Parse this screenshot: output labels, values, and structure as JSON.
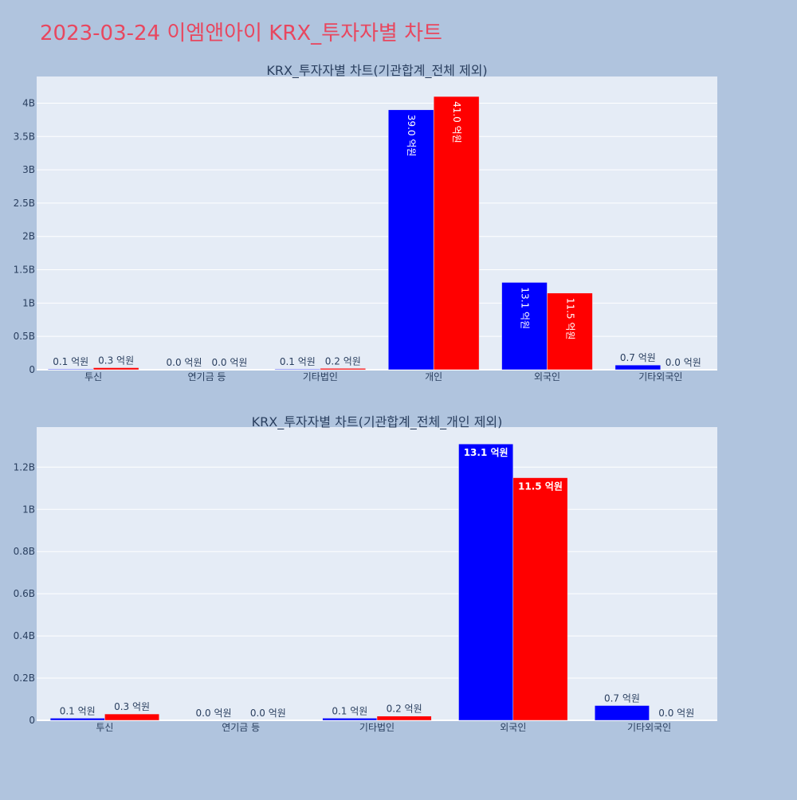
{
  "page_title": "2023-03-24 이엠앤아이 KRX_투자자별 차트",
  "colors": {
    "background": "#b0c4de",
    "plot_background": "#e5ecf6",
    "title": "#e8475f",
    "subtitle": "#2a3f5f",
    "series_buy": "#0000ff",
    "series_sell": "#ff0000"
  },
  "chart_data": [
    {
      "type": "bar",
      "title": "KRX_투자자별 차트(기관합계_전체 제외)",
      "categories": [
        "투신",
        "연기금 등",
        "기타법인",
        "개인",
        "외국인",
        "기타외국인"
      ],
      "series": [
        {
          "color": "#0000ff",
          "values": [
            10000000,
            0,
            10000000,
            3900000000,
            1310000000,
            70000000
          ],
          "labels": [
            "0.1 억원",
            "0.0 억원",
            "0.1 억원",
            "39.0 억원",
            "13.1 억원",
            "0.7 억원"
          ]
        },
        {
          "color": "#ff0000",
          "values": [
            30000000,
            0,
            20000000,
            4100000000,
            1150000000,
            0
          ],
          "labels": [
            "0.3 억원",
            "0.0 억원",
            "0.2 억원",
            "41.0 억원",
            "11.5 억원",
            "0.0 억원"
          ]
        }
      ],
      "ylim": [
        0,
        4400000000
      ],
      "yticks": [
        0,
        500000000,
        1000000000,
        1500000000,
        2000000000,
        2500000000,
        3000000000,
        3500000000,
        4000000000
      ],
      "ytick_labels": [
        "0",
        "0.5B",
        "1B",
        "1.5B",
        "2B",
        "2.5B",
        "3B",
        "3.5B",
        "4B"
      ],
      "inside_label_rotated": true
    },
    {
      "type": "bar",
      "title": "KRX_투자자별 차트(기관합계_전체_개인 제외)",
      "categories": [
        "투신",
        "연기금 등",
        "기타법인",
        "외국인",
        "기타외국인"
      ],
      "series": [
        {
          "color": "#0000ff",
          "values": [
            10000000,
            0,
            10000000,
            1310000000,
            70000000
          ],
          "labels": [
            "0.1 억원",
            "0.0 억원",
            "0.1 억원",
            "13.1 억원",
            "0.7 억원"
          ]
        },
        {
          "color": "#ff0000",
          "values": [
            30000000,
            0,
            20000000,
            1150000000,
            0
          ],
          "labels": [
            "0.3 억원",
            "0.0 억원",
            "0.2 억원",
            "11.5 억원",
            "0.0 억원"
          ]
        }
      ],
      "ylim": [
        0,
        1390000000
      ],
      "yticks": [
        0,
        200000000,
        400000000,
        600000000,
        800000000,
        1000000000,
        1200000000
      ],
      "ytick_labels": [
        "0",
        "0.2B",
        "0.4B",
        "0.6B",
        "0.8B",
        "1B",
        "1.2B"
      ],
      "inside_label_rotated": false
    }
  ]
}
